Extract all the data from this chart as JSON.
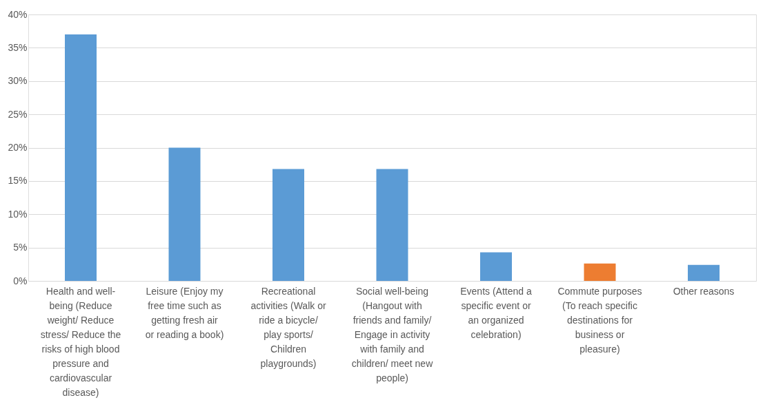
{
  "chart_data": {
    "type": "bar",
    "categories": [
      "Health and well-being (Reduce weight/ Reduce stress/ Reduce the risks of high blood pressure and cardiovascular disease)",
      "Leisure (Enjoy my free time such as getting fresh air or reading a book)",
      "Recreational activities (Walk or ride a bicycle/ play sports/ Children playgrounds)",
      "Social well-being (Hangout with friends and family/ Engage in activity with family and children/ meet new people)",
      "Events (Attend a specific event or an organized celebration)",
      "Commute purposes (To reach specific destinations for business or pleasure)",
      "Other reasons"
    ],
    "values": [
      37,
      20,
      16.8,
      16.8,
      4.3,
      2.6,
      2.4
    ],
    "colors": [
      "#5b9bd5",
      "#5b9bd5",
      "#5b9bd5",
      "#5b9bd5",
      "#5b9bd5",
      "#ed7d31",
      "#5b9bd5"
    ],
    "ylim": [
      0,
      40
    ],
    "yticks": [
      {
        "value": 0,
        "label": "0%"
      },
      {
        "value": 5,
        "label": "5%"
      },
      {
        "value": 10,
        "label": "10%"
      },
      {
        "value": 15,
        "label": "15%"
      },
      {
        "value": 20,
        "label": "20%"
      },
      {
        "value": 25,
        "label": "25%"
      },
      {
        "value": 30,
        "label": "30%"
      },
      {
        "value": 35,
        "label": "35%"
      },
      {
        "value": 40,
        "label": "40%"
      }
    ],
    "grid": "y"
  }
}
